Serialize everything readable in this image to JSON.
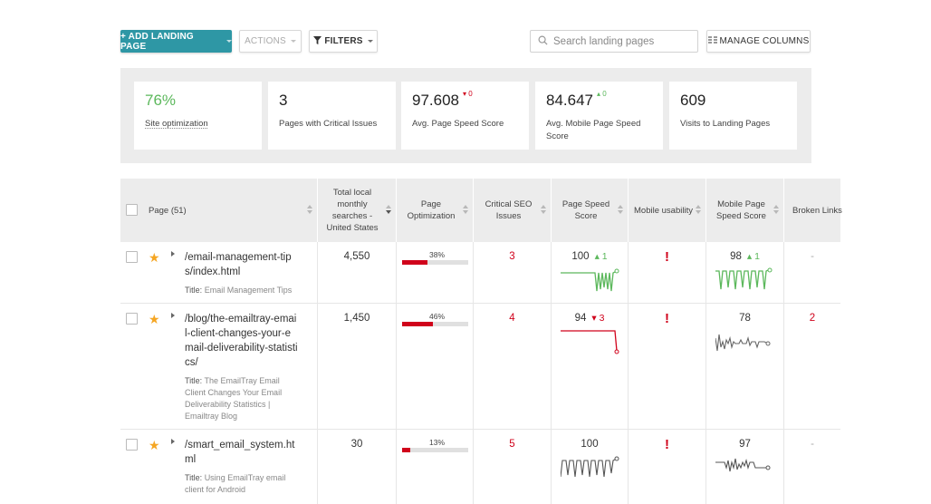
{
  "toolbar": {
    "add_label": "+ ADD LANDING PAGE",
    "actions_label": "ACTIONS",
    "filters_label": "FILTERS",
    "search_placeholder": "Search landing pages",
    "columns_label": "MANAGE COLUMNS"
  },
  "stats": [
    {
      "value": "76%",
      "label": "Site optimization",
      "delta": ""
    },
    {
      "value": "3",
      "label": "Pages with Critical Issues",
      "delta": ""
    },
    {
      "value": "97.608",
      "label": "Avg. Page Speed Score",
      "delta": "0",
      "delta_dir": "down"
    },
    {
      "value": "84.647",
      "label": "Avg. Mobile Page Speed Score",
      "delta": "0",
      "delta_dir": "up"
    },
    {
      "value": "609",
      "label": "Visits to Landing Pages",
      "delta": ""
    }
  ],
  "columns": {
    "page": "Page (51)",
    "searches": "Total local monthly searches - United States",
    "optimization": "Page Optimization",
    "critical": "Critical SEO Issues",
    "speed": "Page Speed Score",
    "mobile": "Mobile usability",
    "mobile_speed": "Mobile Page Speed Score",
    "broken": "Broken Links"
  },
  "title_prefix": "Title:",
  "rows": [
    {
      "url": "/email-management-tips/index.html",
      "title": "Email Management Tips",
      "searches": "4,550",
      "optimization_pct": "38%",
      "optimization_value": 0.38,
      "critical": "3",
      "speed": "100",
      "speed_delta": "1",
      "speed_dir": "up",
      "mobile_alert": "!",
      "mobile_speed": "98",
      "mobile_speed_delta": "1",
      "mobile_speed_dir": "up",
      "broken": "-"
    },
    {
      "url": "/blog/the-emailtray-email-client-changes-your-email-deliverability-statistics/",
      "title": "The EmailTray Email Client Changes Your Email Deliverability Statistics | Emailtray Blog",
      "searches": "1,450",
      "optimization_pct": "46%",
      "optimization_value": 0.46,
      "critical": "4",
      "speed": "94",
      "speed_delta": "3",
      "speed_dir": "down",
      "mobile_alert": "!",
      "mobile_speed": "78",
      "mobile_speed_delta": "",
      "broken": "2"
    },
    {
      "url": "/smart_email_system.html",
      "title": "Using EmailTray email client for Android",
      "searches": "30",
      "optimization_pct": "13%",
      "optimization_value": 0.13,
      "critical": "5",
      "speed": "100",
      "speed_delta": "",
      "mobile_alert": "!",
      "mobile_speed": "97",
      "mobile_speed_delta": "",
      "broken": "-"
    }
  ],
  "colors": {
    "accent": "#2e97a5",
    "good": "#5cb85c",
    "bad": "#d0021b",
    "neutral": "#555555"
  }
}
